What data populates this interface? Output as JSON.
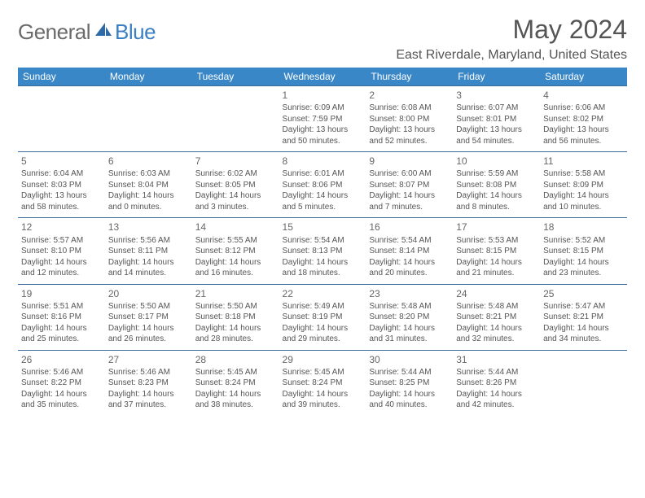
{
  "logo": {
    "general": "General",
    "blue": "Blue"
  },
  "title": "May 2024",
  "location": "East Riverdale, Maryland, United States",
  "colors": {
    "header_bg": "#3a87c7",
    "header_text": "#ffffff",
    "border": "#3a6a9a",
    "body_text": "#555555",
    "title_text": "#555555",
    "logo_general": "#6a6a6a",
    "logo_blue": "#3a7fc4",
    "background": "#ffffff"
  },
  "days_of_week": [
    "Sunday",
    "Monday",
    "Tuesday",
    "Wednesday",
    "Thursday",
    "Friday",
    "Saturday"
  ],
  "weeks": [
    [
      null,
      null,
      null,
      {
        "num": "1",
        "sunrise": "6:09 AM",
        "sunset": "7:59 PM",
        "daylight_a": "Daylight: 13 hours",
        "daylight_b": "and 50 minutes."
      },
      {
        "num": "2",
        "sunrise": "6:08 AM",
        "sunset": "8:00 PM",
        "daylight_a": "Daylight: 13 hours",
        "daylight_b": "and 52 minutes."
      },
      {
        "num": "3",
        "sunrise": "6:07 AM",
        "sunset": "8:01 PM",
        "daylight_a": "Daylight: 13 hours",
        "daylight_b": "and 54 minutes."
      },
      {
        "num": "4",
        "sunrise": "6:06 AM",
        "sunset": "8:02 PM",
        "daylight_a": "Daylight: 13 hours",
        "daylight_b": "and 56 minutes."
      }
    ],
    [
      {
        "num": "5",
        "sunrise": "6:04 AM",
        "sunset": "8:03 PM",
        "daylight_a": "Daylight: 13 hours",
        "daylight_b": "and 58 minutes."
      },
      {
        "num": "6",
        "sunrise": "6:03 AM",
        "sunset": "8:04 PM",
        "daylight_a": "Daylight: 14 hours",
        "daylight_b": "and 0 minutes."
      },
      {
        "num": "7",
        "sunrise": "6:02 AM",
        "sunset": "8:05 PM",
        "daylight_a": "Daylight: 14 hours",
        "daylight_b": "and 3 minutes."
      },
      {
        "num": "8",
        "sunrise": "6:01 AM",
        "sunset": "8:06 PM",
        "daylight_a": "Daylight: 14 hours",
        "daylight_b": "and 5 minutes."
      },
      {
        "num": "9",
        "sunrise": "6:00 AM",
        "sunset": "8:07 PM",
        "daylight_a": "Daylight: 14 hours",
        "daylight_b": "and 7 minutes."
      },
      {
        "num": "10",
        "sunrise": "5:59 AM",
        "sunset": "8:08 PM",
        "daylight_a": "Daylight: 14 hours",
        "daylight_b": "and 8 minutes."
      },
      {
        "num": "11",
        "sunrise": "5:58 AM",
        "sunset": "8:09 PM",
        "daylight_a": "Daylight: 14 hours",
        "daylight_b": "and 10 minutes."
      }
    ],
    [
      {
        "num": "12",
        "sunrise": "5:57 AM",
        "sunset": "8:10 PM",
        "daylight_a": "Daylight: 14 hours",
        "daylight_b": "and 12 minutes."
      },
      {
        "num": "13",
        "sunrise": "5:56 AM",
        "sunset": "8:11 PM",
        "daylight_a": "Daylight: 14 hours",
        "daylight_b": "and 14 minutes."
      },
      {
        "num": "14",
        "sunrise": "5:55 AM",
        "sunset": "8:12 PM",
        "daylight_a": "Daylight: 14 hours",
        "daylight_b": "and 16 minutes."
      },
      {
        "num": "15",
        "sunrise": "5:54 AM",
        "sunset": "8:13 PM",
        "daylight_a": "Daylight: 14 hours",
        "daylight_b": "and 18 minutes."
      },
      {
        "num": "16",
        "sunrise": "5:54 AM",
        "sunset": "8:14 PM",
        "daylight_a": "Daylight: 14 hours",
        "daylight_b": "and 20 minutes."
      },
      {
        "num": "17",
        "sunrise": "5:53 AM",
        "sunset": "8:15 PM",
        "daylight_a": "Daylight: 14 hours",
        "daylight_b": "and 21 minutes."
      },
      {
        "num": "18",
        "sunrise": "5:52 AM",
        "sunset": "8:15 PM",
        "daylight_a": "Daylight: 14 hours",
        "daylight_b": "and 23 minutes."
      }
    ],
    [
      {
        "num": "19",
        "sunrise": "5:51 AM",
        "sunset": "8:16 PM",
        "daylight_a": "Daylight: 14 hours",
        "daylight_b": "and 25 minutes."
      },
      {
        "num": "20",
        "sunrise": "5:50 AM",
        "sunset": "8:17 PM",
        "daylight_a": "Daylight: 14 hours",
        "daylight_b": "and 26 minutes."
      },
      {
        "num": "21",
        "sunrise": "5:50 AM",
        "sunset": "8:18 PM",
        "daylight_a": "Daylight: 14 hours",
        "daylight_b": "and 28 minutes."
      },
      {
        "num": "22",
        "sunrise": "5:49 AM",
        "sunset": "8:19 PM",
        "daylight_a": "Daylight: 14 hours",
        "daylight_b": "and 29 minutes."
      },
      {
        "num": "23",
        "sunrise": "5:48 AM",
        "sunset": "8:20 PM",
        "daylight_a": "Daylight: 14 hours",
        "daylight_b": "and 31 minutes."
      },
      {
        "num": "24",
        "sunrise": "5:48 AM",
        "sunset": "8:21 PM",
        "daylight_a": "Daylight: 14 hours",
        "daylight_b": "and 32 minutes."
      },
      {
        "num": "25",
        "sunrise": "5:47 AM",
        "sunset": "8:21 PM",
        "daylight_a": "Daylight: 14 hours",
        "daylight_b": "and 34 minutes."
      }
    ],
    [
      {
        "num": "26",
        "sunrise": "5:46 AM",
        "sunset": "8:22 PM",
        "daylight_a": "Daylight: 14 hours",
        "daylight_b": "and 35 minutes."
      },
      {
        "num": "27",
        "sunrise": "5:46 AM",
        "sunset": "8:23 PM",
        "daylight_a": "Daylight: 14 hours",
        "daylight_b": "and 37 minutes."
      },
      {
        "num": "28",
        "sunrise": "5:45 AM",
        "sunset": "8:24 PM",
        "daylight_a": "Daylight: 14 hours",
        "daylight_b": "and 38 minutes."
      },
      {
        "num": "29",
        "sunrise": "5:45 AM",
        "sunset": "8:24 PM",
        "daylight_a": "Daylight: 14 hours",
        "daylight_b": "and 39 minutes."
      },
      {
        "num": "30",
        "sunrise": "5:44 AM",
        "sunset": "8:25 PM",
        "daylight_a": "Daylight: 14 hours",
        "daylight_b": "and 40 minutes."
      },
      {
        "num": "31",
        "sunrise": "5:44 AM",
        "sunset": "8:26 PM",
        "daylight_a": "Daylight: 14 hours",
        "daylight_b": "and 42 minutes."
      },
      null
    ]
  ]
}
